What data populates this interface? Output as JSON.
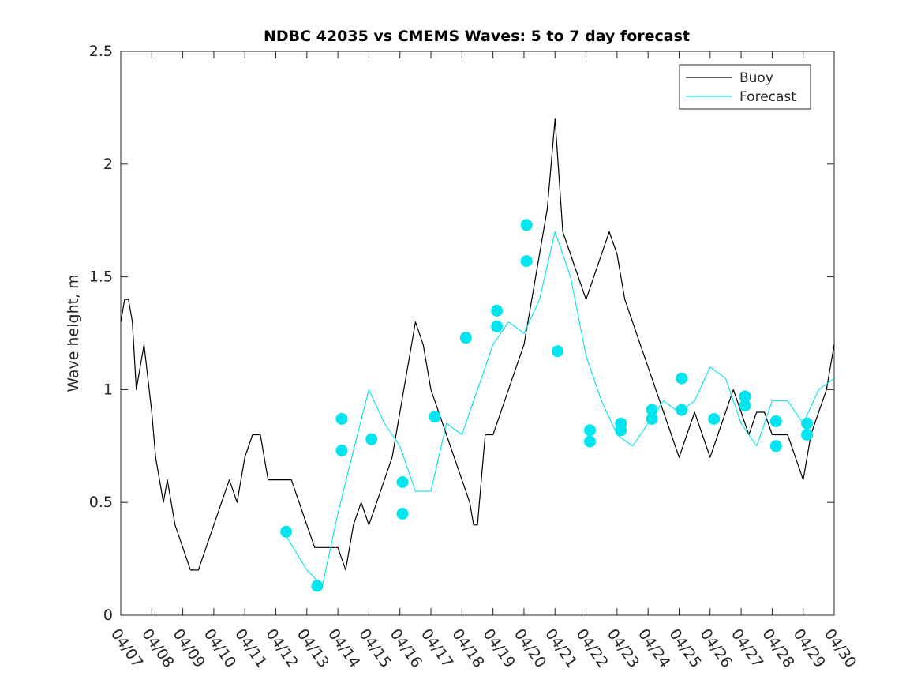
{
  "chart_data": {
    "type": "line",
    "title": "NDBC 42035 vs CMEMS Waves: 5 to 7 day forecast",
    "ylabel": "Wave height, m",
    "xlabel": "",
    "xlim": [
      "04/07",
      "04/30"
    ],
    "ylim": [
      0,
      2.5
    ],
    "x_tick_labels": [
      "04/07",
      "04/08",
      "04/09",
      "04/10",
      "04/11",
      "04/12",
      "04/13",
      "04/14",
      "04/15",
      "04/16",
      "04/17",
      "04/18",
      "04/19",
      "04/20",
      "04/21",
      "04/22",
      "04/23",
      "04/24",
      "04/25",
      "04/26",
      "04/27",
      "04/28",
      "04/29",
      "04/30"
    ],
    "y_ticks": [
      0,
      0.5,
      1,
      1.5,
      2,
      2.5
    ],
    "y_tick_labels": [
      "0",
      "0.5",
      "1",
      "1.5",
      "2",
      "2.5"
    ],
    "grid": false,
    "legend_position": "top-right",
    "series": [
      {
        "name": "Buoy",
        "color": "#000000",
        "x": [
          "04/07 00:00",
          "04/07 03:00",
          "04/07 06:00",
          "04/07 09:00",
          "04/07 12:00",
          "04/07 18:00",
          "04/08 00:00",
          "04/08 03:00",
          "04/08 06:00",
          "04/08 09:00",
          "04/08 12:00",
          "04/08 18:00",
          "04/09 00:00",
          "04/09 06:00",
          "04/09 12:00",
          "04/09 18:00",
          "04/10 00:00",
          "04/10 06:00",
          "04/10 12:00",
          "04/10 18:00",
          "04/11 00:00",
          "04/11 06:00",
          "04/11 12:00",
          "04/11 18:00",
          "04/12 00:00",
          "04/12 06:00",
          "04/12 12:00",
          "04/12 18:00",
          "04/13 00:00",
          "04/13 06:00",
          "04/13 12:00",
          "04/13 18:00",
          "04/14 00:00",
          "04/14 06:00",
          "04/14 09:00",
          "04/14 12:00",
          "04/14 18:00",
          "04/15 00:00",
          "04/15 06:00",
          "04/15 12:00",
          "04/15 18:00",
          "04/16 00:00",
          "04/16 06:00",
          "04/16 12:00",
          "04/16 18:00",
          "04/17 00:00",
          "04/17 06:00",
          "04/17 12:00",
          "04/17 18:00",
          "04/18 00:00",
          "04/18 06:00",
          "04/18 09:00",
          "04/18 12:00",
          "04/18 15:00",
          "04/18 18:00",
          "04/19 00:00",
          "04/19 06:00",
          "04/19 12:00",
          "04/19 18:00",
          "04/20 00:00",
          "04/20 06:00",
          "04/20 12:00",
          "04/20 18:00",
          "04/21 00:00",
          "04/21 06:00",
          "04/21 12:00",
          "04/21 18:00",
          "04/22 00:00",
          "04/22 06:00",
          "04/22 12:00",
          "04/22 18:00",
          "04/23 00:00",
          "04/23 06:00",
          "04/23 12:00",
          "04/23 18:00",
          "04/24 00:00",
          "04/24 06:00",
          "04/24 12:00",
          "04/24 18:00",
          "04/25 00:00",
          "04/25 06:00",
          "04/25 12:00",
          "04/25 18:00",
          "04/26 00:00",
          "04/26 06:00",
          "04/26 12:00",
          "04/26 18:00",
          "04/27 00:00",
          "04/27 06:00",
          "04/27 12:00",
          "04/27 18:00",
          "04/28 00:00",
          "04/28 06:00",
          "04/28 12:00",
          "04/28 18:00",
          "04/29 00:00",
          "04/29 06:00",
          "04/29 12:00",
          "04/29 18:00",
          "04/30 00:00"
        ],
        "y": [
          1.3,
          1.4,
          1.4,
          1.3,
          1.0,
          1.2,
          0.9,
          0.7,
          0.6,
          0.5,
          0.6,
          0.4,
          0.3,
          0.2,
          0.2,
          0.3,
          0.4,
          0.5,
          0.6,
          0.5,
          0.7,
          0.8,
          0.8,
          0.6,
          0.6,
          0.6,
          0.6,
          0.5,
          0.4,
          0.3,
          0.3,
          0.3,
          0.3,
          0.2,
          0.3,
          0.4,
          0.5,
          0.4,
          0.5,
          0.6,
          0.7,
          0.9,
          1.1,
          1.3,
          1.2,
          1.0,
          0.9,
          0.8,
          0.7,
          0.6,
          0.5,
          0.4,
          0.4,
          0.6,
          0.8,
          0.8,
          0.9,
          1.0,
          1.1,
          1.2,
          1.4,
          1.6,
          1.8,
          2.2,
          1.7,
          1.6,
          1.5,
          1.4,
          1.5,
          1.6,
          1.7,
          1.6,
          1.4,
          1.3,
          1.2,
          1.1,
          1.0,
          0.9,
          0.8,
          0.7,
          0.8,
          0.9,
          0.8,
          0.7,
          0.8,
          0.9,
          1.0,
          0.9,
          0.8,
          0.9,
          0.9,
          0.8,
          0.8,
          0.8,
          0.7,
          0.6,
          0.8,
          0.9,
          1.0,
          1.2
        ]
      },
      {
        "name": "Forecast",
        "color": "#00e5ee",
        "x": [
          "04/12 06:00",
          "04/13 00:00",
          "04/13 12:00",
          "04/14 00:00",
          "04/14 12:00",
          "04/15 00:00",
          "04/15 12:00",
          "04/16 00:00",
          "04/16 12:00",
          "04/17 00:00",
          "04/17 12:00",
          "04/18 00:00",
          "04/18 12:00",
          "04/19 00:00",
          "04/19 12:00",
          "04/20 00:00",
          "04/20 12:00",
          "04/21 00:00",
          "04/21 12:00",
          "04/22 00:00",
          "04/22 12:00",
          "04/23 00:00",
          "04/23 12:00",
          "04/24 00:00",
          "04/24 12:00",
          "04/25 00:00",
          "04/25 12:00",
          "04/26 00:00",
          "04/26 12:00",
          "04/27 00:00",
          "04/27 12:00",
          "04/28 00:00",
          "04/28 12:00",
          "04/29 00:00",
          "04/29 12:00",
          "04/30 00:00"
        ],
        "y": [
          0.37,
          0.2,
          0.13,
          0.45,
          0.73,
          1.0,
          0.85,
          0.75,
          0.55,
          0.55,
          0.85,
          0.8,
          1.0,
          1.2,
          1.3,
          1.25,
          1.4,
          1.7,
          1.5,
          1.15,
          0.95,
          0.8,
          0.75,
          0.85,
          0.95,
          0.9,
          0.95,
          1.1,
          1.05,
          0.85,
          0.75,
          0.95,
          0.95,
          0.85,
          1.0,
          1.05
        ]
      }
    ],
    "markers": {
      "name": "Forecast",
      "color": "#00e5ee",
      "x": [
        "04/12 08:00",
        "04/13 08:00",
        "04/14 03:00",
        "04/14 03:00",
        "04/15 02:00",
        "04/16 02:00",
        "04/16 02:00",
        "04/17 03:00",
        "04/18 03:00",
        "04/19 03:00",
        "04/19 03:00",
        "04/20 02:00",
        "04/20 02:00",
        "04/21 02:00",
        "04/22 03:00",
        "04/22 03:00",
        "04/23 03:00",
        "04/23 03:00",
        "04/24 03:00",
        "04/24 03:00",
        "04/25 02:00",
        "04/25 02:00",
        "04/26 03:00",
        "04/27 03:00",
        "04/27 03:00",
        "04/28 03:00",
        "04/28 03:00",
        "04/29 03:00",
        "04/29 03:00"
      ],
      "y": [
        0.37,
        0.13,
        0.87,
        0.73,
        0.78,
        0.59,
        0.45,
        0.88,
        1.23,
        1.35,
        1.28,
        1.73,
        1.57,
        1.17,
        0.82,
        0.77,
        0.85,
        0.82,
        0.91,
        0.87,
        1.05,
        0.91,
        0.87,
        0.97,
        0.93,
        0.86,
        0.75,
        0.85,
        0.8
      ]
    }
  }
}
